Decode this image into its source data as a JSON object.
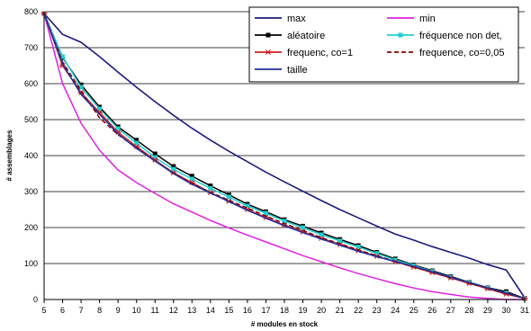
{
  "chart_data": {
    "type": "line",
    "title": "",
    "xlabel": "# modules en stock",
    "ylabel": "# assemblages",
    "x": [
      5,
      6,
      7,
      8,
      9,
      10,
      11,
      12,
      13,
      14,
      15,
      16,
      17,
      18,
      19,
      20,
      21,
      22,
      23,
      24,
      25,
      26,
      27,
      28,
      29,
      30,
      31
    ],
    "xlim": [
      5,
      31
    ],
    "ylim": [
      0,
      800
    ],
    "yticks": [
      0,
      100,
      200,
      300,
      400,
      500,
      600,
      700,
      800
    ],
    "grid": true,
    "legend_position": "top-right",
    "series": [
      {
        "name": "max",
        "color": "#1c1c7c",
        "style": "solid",
        "marker": "none",
        "values": [
          795,
          737,
          715,
          675,
          632,
          590,
          550,
          512,
          476,
          443,
          412,
          383,
          354,
          327,
          301,
          275,
          250,
          227,
          204,
          182,
          165,
          147,
          131,
          115,
          97,
          82,
          5
        ]
      },
      {
        "name": "min",
        "color": "#e020e0",
        "style": "solid",
        "marker": "none",
        "values": [
          795,
          600,
          490,
          415,
          360,
          325,
          295,
          266,
          243,
          220,
          199,
          179,
          160,
          141,
          122,
          105,
          88,
          72,
          58,
          44,
          32,
          22,
          14,
          7,
          3,
          0,
          0
        ]
      },
      {
        "name": "aléatoire",
        "color": "#000000",
        "style": "solid",
        "marker": "square",
        "values": [
          795,
          672,
          597,
          535,
          480,
          443,
          405,
          370,
          343,
          316,
          291,
          265,
          244,
          222,
          204,
          185,
          167,
          150,
          131,
          113,
          96,
          80,
          64,
          48,
          33,
          22,
          3
        ]
      },
      {
        "name": "fréquence non det,",
        "color": "#20d0d0",
        "style": "solid",
        "marker": "square",
        "values": [
          795,
          675,
          590,
          530,
          475,
          435,
          395,
          362,
          335,
          309,
          285,
          260,
          240,
          218,
          200,
          180,
          163,
          146,
          128,
          110,
          94,
          78,
          62,
          47,
          32,
          18,
          3
        ]
      },
      {
        "name": "frequenc, co=1",
        "color": "#d02020",
        "style": "solid",
        "marker": "star",
        "values": [
          795,
          650,
          575,
          520,
          465,
          425,
          388,
          352,
          325,
          297,
          273,
          250,
          228,
          206,
          188,
          170,
          153,
          136,
          120,
          105,
          90,
          75,
          60,
          45,
          30,
          15,
          3
        ]
      },
      {
        "name": "frequence, co=0,05",
        "color": "#800000",
        "style": "dashed",
        "marker": "none",
        "values": [
          795,
          660,
          580,
          505,
          458,
          422,
          385,
          352,
          322,
          298,
          276,
          254,
          232,
          211,
          192,
          172,
          155,
          138,
          122,
          106,
          91,
          76,
          61,
          46,
          31,
          17,
          3
        ]
      },
      {
        "name": "taille",
        "color": "#2030a0",
        "style": "solid",
        "marker": "none",
        "values": [
          795,
          655,
          570,
          515,
          460,
          420,
          385,
          350,
          320,
          296,
          272,
          248,
          226,
          205,
          186,
          168,
          151,
          134,
          119,
          106,
          92,
          77,
          62,
          47,
          32,
          18,
          3
        ]
      }
    ]
  }
}
